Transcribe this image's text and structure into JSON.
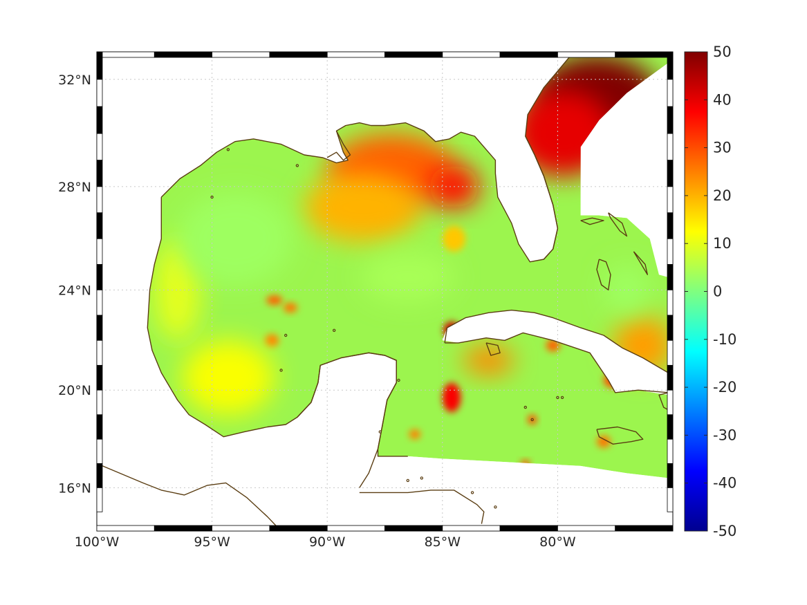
{
  "map": {
    "projection": "mercator",
    "lon_range": [
      -100,
      -75
    ],
    "lat_range": [
      14.2,
      33
    ],
    "lon_ticks": [
      {
        "value": -100,
        "label": "100°W"
      },
      {
        "value": -95,
        "label": "95°W"
      },
      {
        "value": -90,
        "label": "90°W"
      },
      {
        "value": -85,
        "label": "85°W"
      },
      {
        "value": -80,
        "label": "80°W"
      }
    ],
    "lat_ticks": [
      {
        "value": 32,
        "label": "32°N"
      },
      {
        "value": 28,
        "label": "28°N"
      },
      {
        "value": 24,
        "label": "24°N"
      },
      {
        "value": 20,
        "label": "20°N"
      },
      {
        "value": 16,
        "label": "16°N"
      }
    ],
    "grid": true,
    "coastline_color": "#5a3d12",
    "frame_style": "black-white alternating border"
  },
  "colorbar": {
    "colormap": "jet",
    "range": [
      -50,
      50
    ],
    "position": "right",
    "ticks": [
      "50",
      "40",
      "30",
      "20",
      "10",
      "0",
      "-10",
      "-20",
      "-30",
      "-40",
      "-50"
    ]
  },
  "field_blobs": [
    {
      "lon": -78.3,
      "lat": 31.2,
      "value": 50,
      "rx": 2.8,
      "ry": 1.7
    },
    {
      "lon": -79.8,
      "lat": 30.0,
      "value": 40,
      "rx": 2.2,
      "ry": 1.6
    },
    {
      "lon": -87.2,
      "lat": 28.6,
      "value": 28,
      "rx": 2.8,
      "ry": 1.4
    },
    {
      "lon": -84.5,
      "lat": 28.0,
      "value": 36,
      "rx": 1.1,
      "ry": 0.8
    },
    {
      "lon": -88.5,
      "lat": 27.2,
      "value": 20,
      "rx": 2.5,
      "ry": 1.3
    },
    {
      "lon": -84.6,
      "lat": 22.4,
      "value": 42,
      "rx": 0.35,
      "ry": 0.35
    },
    {
      "lon": -84.6,
      "lat": 19.7,
      "value": 38,
      "rx": 0.4,
      "ry": 0.6
    },
    {
      "lon": -83.0,
      "lat": 21.2,
      "value": 24,
      "rx": 1.1,
      "ry": 0.6
    },
    {
      "lon": -76.3,
      "lat": 21.8,
      "value": 22,
      "rx": 1.3,
      "ry": 1.2
    },
    {
      "lon": -77.6,
      "lat": 20.4,
      "value": 30,
      "rx": 0.4,
      "ry": 0.3
    },
    {
      "lon": -92.3,
      "lat": 23.6,
      "value": 28,
      "rx": 0.35,
      "ry": 0.2
    },
    {
      "lon": -91.6,
      "lat": 23.3,
      "value": 26,
      "rx": 0.3,
      "ry": 0.2
    },
    {
      "lon": -92.4,
      "lat": 22.0,
      "value": 25,
      "rx": 0.3,
      "ry": 0.25
    },
    {
      "lon": -80.2,
      "lat": 21.8,
      "value": 28,
      "rx": 0.3,
      "ry": 0.25
    },
    {
      "lon": -81.1,
      "lat": 18.8,
      "value": 30,
      "rx": 0.2,
      "ry": 0.2
    },
    {
      "lon": -81.4,
      "lat": 17.0,
      "value": 30,
      "rx": 0.2,
      "ry": 0.15
    },
    {
      "lon": -86.2,
      "lat": 18.2,
      "value": 25,
      "rx": 0.25,
      "ry": 0.2
    },
    {
      "lon": -78.0,
      "lat": 17.9,
      "value": 26,
      "rx": 0.3,
      "ry": 0.25
    },
    {
      "lon": -94.3,
      "lat": 20.5,
      "value": 12,
      "rx": 2.0,
      "ry": 1.5
    },
    {
      "lon": -96.5,
      "lat": 24.0,
      "value": 10,
      "rx": 1.0,
      "ry": 2.0
    },
    {
      "lon": -77.0,
      "lat": 24.0,
      "value": 3,
      "rx": 1.0,
      "ry": 1.0
    },
    {
      "lon": -94.0,
      "lat": 26.0,
      "value": 3,
      "rx": 2.5,
      "ry": 1.8
    },
    {
      "lon": -86.5,
      "lat": 24.5,
      "value": 4,
      "rx": 2.0,
      "ry": 1.0
    },
    {
      "lon": -84.5,
      "lat": 26.0,
      "value": 18,
      "rx": 0.5,
      "ry": 0.5
    }
  ]
}
